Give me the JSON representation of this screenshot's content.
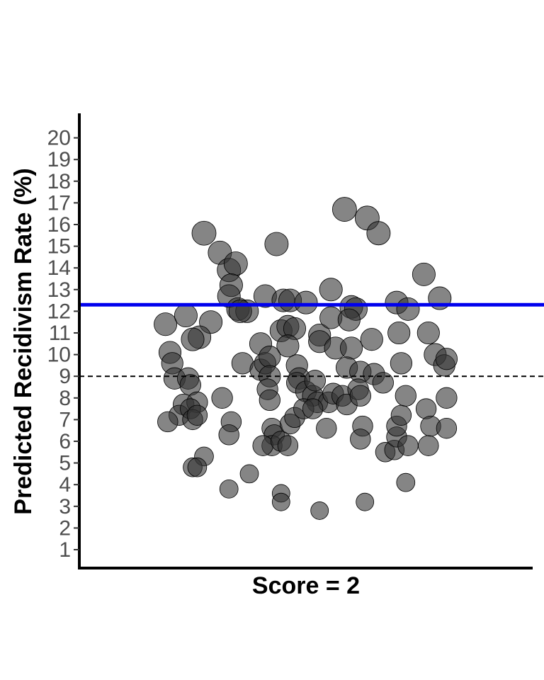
{
  "chart_data": {
    "type": "scatter",
    "xlabel": "Score = 2",
    "ylabel": "Predicted Recidivism Rate (%)",
    "ylim": [
      0,
      21
    ],
    "yticks": [
      1,
      2,
      3,
      4,
      5,
      6,
      7,
      8,
      9,
      10,
      11,
      12,
      13,
      14,
      15,
      16,
      17,
      18,
      19,
      20
    ],
    "x_jitter_range": [
      -1,
      1
    ],
    "grid": false,
    "legend": "none",
    "colors": {
      "point": "#333333",
      "reference_line": "#0000ee",
      "dashed_line": "#000000"
    },
    "reference_lines": [
      {
        "style": "solid",
        "color": "#0000ee",
        "y": 12.3
      },
      {
        "style": "dashed",
        "color": "#000000",
        "y": 9.0
      }
    ],
    "points": [
      {
        "x": -0.45,
        "y": 15.6,
        "size": 1.0
      },
      {
        "x": -0.38,
        "y": 14.7,
        "size": 0.95
      },
      {
        "x": -0.34,
        "y": 13.9,
        "size": 0.95
      },
      {
        "x": -0.31,
        "y": 14.2,
        "size": 0.95
      },
      {
        "x": -0.33,
        "y": 13.2,
        "size": 0.9
      },
      {
        "x": -0.34,
        "y": 12.7,
        "size": 0.9
      },
      {
        "x": -0.3,
        "y": 12.1,
        "size": 0.9
      },
      {
        "x": -0.26,
        "y": 12.0,
        "size": 0.9
      },
      {
        "x": -0.13,
        "y": 15.1,
        "size": 0.95
      },
      {
        "x": -0.18,
        "y": 12.7,
        "size": 0.9
      },
      {
        "x": -0.1,
        "y": 12.5,
        "size": 0.9
      },
      {
        "x": -0.07,
        "y": 12.5,
        "size": 0.9
      },
      {
        "x": 0.0,
        "y": 12.4,
        "size": 0.9
      },
      {
        "x": 0.11,
        "y": 13.0,
        "size": 0.9
      },
      {
        "x": 0.17,
        "y": 16.7,
        "size": 1.0
      },
      {
        "x": 0.27,
        "y": 16.3,
        "size": 1.0
      },
      {
        "x": 0.32,
        "y": 15.6,
        "size": 0.95
      },
      {
        "x": 0.2,
        "y": 12.2,
        "size": 0.9
      },
      {
        "x": 0.22,
        "y": 12.1,
        "size": 0.9
      },
      {
        "x": 0.4,
        "y": 12.4,
        "size": 0.9
      },
      {
        "x": 0.45,
        "y": 12.1,
        "size": 0.9
      },
      {
        "x": 0.52,
        "y": 13.7,
        "size": 0.9
      },
      {
        "x": 0.59,
        "y": 12.6,
        "size": 0.9
      },
      {
        "x": -0.62,
        "y": 11.4,
        "size": 0.9
      },
      {
        "x": -0.53,
        "y": 11.8,
        "size": 0.9
      },
      {
        "x": -0.42,
        "y": 11.5,
        "size": 0.9
      },
      {
        "x": -0.47,
        "y": 10.8,
        "size": 0.9
      },
      {
        "x": -0.5,
        "y": 10.7,
        "size": 0.9
      },
      {
        "x": -0.29,
        "y": 12.0,
        "size": 0.9
      },
      {
        "x": -0.2,
        "y": 10.5,
        "size": 0.85
      },
      {
        "x": -0.11,
        "y": 11.1,
        "size": 0.85
      },
      {
        "x": -0.08,
        "y": 11.3,
        "size": 0.85
      },
      {
        "x": -0.05,
        "y": 11.2,
        "size": 0.85
      },
      {
        "x": 0.06,
        "y": 10.9,
        "size": 0.85
      },
      {
        "x": 0.06,
        "y": 10.6,
        "size": 0.85
      },
      {
        "x": 0.11,
        "y": 11.7,
        "size": 0.85
      },
      {
        "x": 0.13,
        "y": 10.3,
        "size": 0.85
      },
      {
        "x": 0.19,
        "y": 11.6,
        "size": 0.85
      },
      {
        "x": 0.2,
        "y": 10.3,
        "size": 0.85
      },
      {
        "x": 0.29,
        "y": 10.7,
        "size": 0.85
      },
      {
        "x": 0.41,
        "y": 11.0,
        "size": 0.85
      },
      {
        "x": 0.54,
        "y": 11.0,
        "size": 0.85
      },
      {
        "x": -0.08,
        "y": 10.4,
        "size": 0.85
      },
      {
        "x": -0.6,
        "y": 10.1,
        "size": 0.85
      },
      {
        "x": -0.59,
        "y": 9.6,
        "size": 0.8
      },
      {
        "x": -0.58,
        "y": 8.9,
        "size": 0.8
      },
      {
        "x": -0.52,
        "y": 8.9,
        "size": 0.8
      },
      {
        "x": -0.51,
        "y": 8.6,
        "size": 0.75
      },
      {
        "x": -0.28,
        "y": 9.6,
        "size": 0.8
      },
      {
        "x": -0.2,
        "y": 9.3,
        "size": 0.8
      },
      {
        "x": -0.18,
        "y": 9.6,
        "size": 0.8
      },
      {
        "x": -0.16,
        "y": 9.9,
        "size": 0.8
      },
      {
        "x": -0.16,
        "y": 9.0,
        "size": 0.8
      },
      {
        "x": -0.17,
        "y": 8.4,
        "size": 0.75
      },
      {
        "x": -0.16,
        "y": 7.9,
        "size": 0.75
      },
      {
        "x": -0.04,
        "y": 9.5,
        "size": 0.8
      },
      {
        "x": -0.03,
        "y": 8.9,
        "size": 0.8
      },
      {
        "x": -0.04,
        "y": 8.7,
        "size": 0.75
      },
      {
        "x": 0.0,
        "y": 8.3,
        "size": 0.75
      },
      {
        "x": 0.03,
        "y": 8.1,
        "size": 0.75
      },
      {
        "x": 0.04,
        "y": 8.8,
        "size": 0.75
      },
      {
        "x": 0.05,
        "y": 7.8,
        "size": 0.75
      },
      {
        "x": 0.1,
        "y": 7.8,
        "size": 0.75
      },
      {
        "x": 0.12,
        "y": 8.2,
        "size": 0.75
      },
      {
        "x": 0.16,
        "y": 8.1,
        "size": 0.75
      },
      {
        "x": 0.18,
        "y": 7.7,
        "size": 0.75
      },
      {
        "x": 0.18,
        "y": 9.4,
        "size": 0.8
      },
      {
        "x": 0.24,
        "y": 9.2,
        "size": 0.8
      },
      {
        "x": 0.23,
        "y": 8.4,
        "size": 0.75
      },
      {
        "x": 0.24,
        "y": 8.1,
        "size": 0.75
      },
      {
        "x": 0.3,
        "y": 9.1,
        "size": 0.8
      },
      {
        "x": 0.34,
        "y": 8.7,
        "size": 0.75
      },
      {
        "x": 0.42,
        "y": 9.6,
        "size": 0.8
      },
      {
        "x": 0.57,
        "y": 10.0,
        "size": 0.85
      },
      {
        "x": 0.61,
        "y": 9.5,
        "size": 0.8
      },
      {
        "x": 0.62,
        "y": 9.8,
        "size": 0.8
      },
      {
        "x": -0.54,
        "y": 7.7,
        "size": 0.75
      },
      {
        "x": -0.48,
        "y": 7.8,
        "size": 0.75
      },
      {
        "x": -0.56,
        "y": 7.2,
        "size": 0.7
      },
      {
        "x": -0.51,
        "y": 7.5,
        "size": 0.7
      },
      {
        "x": -0.5,
        "y": 7.0,
        "size": 0.7
      },
      {
        "x": -0.48,
        "y": 7.2,
        "size": 0.7
      },
      {
        "x": -0.61,
        "y": 6.9,
        "size": 0.7
      },
      {
        "x": -0.37,
        "y": 8.0,
        "size": 0.75
      },
      {
        "x": -0.33,
        "y": 6.9,
        "size": 0.7
      },
      {
        "x": -0.34,
        "y": 6.3,
        "size": 0.7
      },
      {
        "x": -0.15,
        "y": 6.6,
        "size": 0.7
      },
      {
        "x": -0.14,
        "y": 6.3,
        "size": 0.7
      },
      {
        "x": -0.15,
        "y": 5.8,
        "size": 0.7
      },
      {
        "x": -0.19,
        "y": 5.8,
        "size": 0.7
      },
      {
        "x": -0.11,
        "y": 6.0,
        "size": 0.7
      },
      {
        "x": -0.08,
        "y": 5.8,
        "size": 0.7
      },
      {
        "x": -0.07,
        "y": 6.8,
        "size": 0.7
      },
      {
        "x": -0.05,
        "y": 7.1,
        "size": 0.7
      },
      {
        "x": -0.01,
        "y": 7.5,
        "size": 0.7
      },
      {
        "x": 0.03,
        "y": 7.5,
        "size": 0.7
      },
      {
        "x": 0.09,
        "y": 6.6,
        "size": 0.7
      },
      {
        "x": 0.25,
        "y": 6.7,
        "size": 0.7
      },
      {
        "x": 0.24,
        "y": 6.1,
        "size": 0.7
      },
      {
        "x": 0.35,
        "y": 5.5,
        "size": 0.65
      },
      {
        "x": 0.39,
        "y": 5.6,
        "size": 0.65
      },
      {
        "x": 0.4,
        "y": 6.2,
        "size": 0.7
      },
      {
        "x": 0.4,
        "y": 6.7,
        "size": 0.7
      },
      {
        "x": 0.42,
        "y": 7.2,
        "size": 0.7
      },
      {
        "x": 0.44,
        "y": 8.1,
        "size": 0.75
      },
      {
        "x": 0.45,
        "y": 5.8,
        "size": 0.7
      },
      {
        "x": 0.53,
        "y": 7.5,
        "size": 0.7
      },
      {
        "x": 0.54,
        "y": 5.8,
        "size": 0.7
      },
      {
        "x": 0.55,
        "y": 6.7,
        "size": 0.7
      },
      {
        "x": 0.62,
        "y": 8.0,
        "size": 0.75
      },
      {
        "x": 0.62,
        "y": 6.6,
        "size": 0.7
      },
      {
        "x": -0.45,
        "y": 5.3,
        "size": 0.6
      },
      {
        "x": -0.5,
        "y": 4.8,
        "size": 0.6
      },
      {
        "x": -0.48,
        "y": 4.8,
        "size": 0.6
      },
      {
        "x": -0.34,
        "y": 3.8,
        "size": 0.55
      },
      {
        "x": -0.25,
        "y": 4.5,
        "size": 0.55
      },
      {
        "x": -0.11,
        "y": 3.6,
        "size": 0.5
      },
      {
        "x": -0.11,
        "y": 3.2,
        "size": 0.5
      },
      {
        "x": 0.06,
        "y": 2.8,
        "size": 0.5
      },
      {
        "x": 0.26,
        "y": 3.2,
        "size": 0.5
      },
      {
        "x": 0.44,
        "y": 4.1,
        "size": 0.55
      }
    ]
  }
}
